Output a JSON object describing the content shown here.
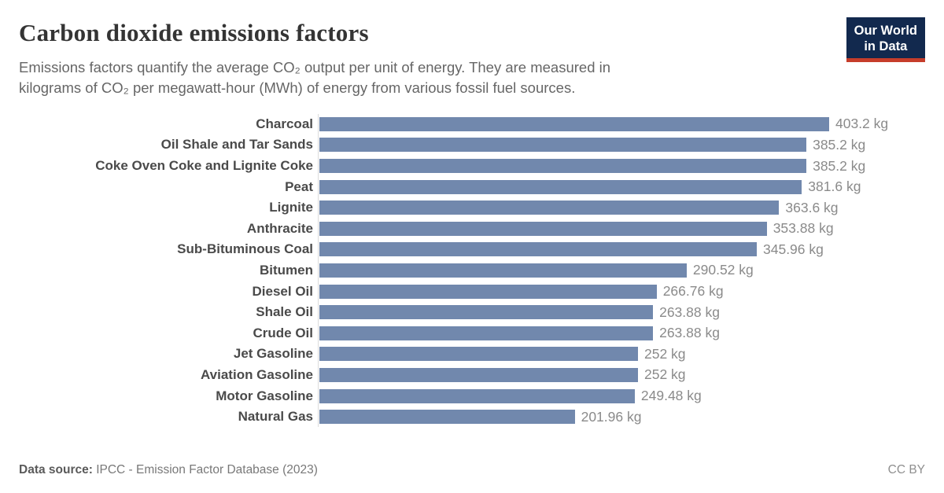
{
  "header": {
    "title": "Carbon dioxide emissions factors",
    "subtitle_line1": "Emissions factors quantify the average CO₂ output per unit of energy. They are measured in",
    "subtitle_line2": "kilograms of CO₂ per megawatt-hour (MWh) of energy from various fossil fuel sources.",
    "logo": {
      "line1": "Our World",
      "line2": "in Data"
    }
  },
  "chart_data": {
    "type": "bar",
    "orientation": "horizontal",
    "title": "Carbon dioxide emissions factors",
    "unit": "kg CO₂ per MWh",
    "xlim": [
      0,
      403.2
    ],
    "grid": false,
    "legend": "none",
    "categories": [
      "Charcoal",
      "Oil Shale and Tar Sands",
      "Coke Oven Coke and Lignite Coke",
      "Peat",
      "Lignite",
      "Anthracite",
      "Sub-Bituminous Coal",
      "Bitumen",
      "Diesel Oil",
      "Shale Oil",
      "Crude Oil",
      "Jet Gasoline",
      "Aviation Gasoline",
      "Motor Gasoline",
      "Natural Gas"
    ],
    "values": [
      403.2,
      385.2,
      385.2,
      381.6,
      363.6,
      353.88,
      345.96,
      290.52,
      266.76,
      263.88,
      263.88,
      252,
      252,
      249.48,
      201.96
    ],
    "value_labels": [
      "403.2 kg",
      "385.2 kg",
      "385.2 kg",
      "381.6 kg",
      "363.6 kg",
      "353.88 kg",
      "345.96 kg",
      "290.52 kg",
      "266.76 kg",
      "263.88 kg",
      "263.88 kg",
      "252 kg",
      "252 kg",
      "249.48 kg",
      "201.96 kg"
    ],
    "bar_color": "#7188ad"
  },
  "footer": {
    "source_label": "Data source:",
    "source_text": "IPCC - Emission Factor Database (2023)",
    "license": "CC BY"
  },
  "colors": {
    "bar": "#7188ad",
    "axis_line": "#dcdcdc",
    "title_text": "#343434",
    "subtitle_text": "#666666",
    "category_text": "#4a4a4a",
    "value_text": "#8a8a8a",
    "logo_bg": "#12294e",
    "logo_stripe": "#c63d2b"
  }
}
